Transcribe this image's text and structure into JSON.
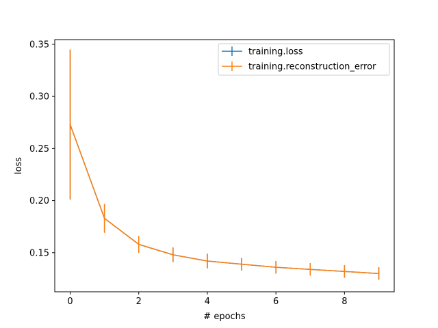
{
  "chart_data": {
    "type": "line",
    "title": "",
    "xlabel": "# epochs",
    "ylabel": "loss",
    "xlim": [
      -0.45,
      9.45
    ],
    "ylim": [
      0.1125,
      0.3545
    ],
    "x_ticks": [
      0,
      2,
      4,
      6,
      8
    ],
    "x_tick_labels": [
      "0",
      "2",
      "4",
      "6",
      "8"
    ],
    "y_ticks": [
      0.15,
      0.2,
      0.25,
      0.3,
      0.35
    ],
    "y_tick_labels": [
      "0.15",
      "0.20",
      "0.25",
      "0.30",
      "0.35"
    ],
    "grid": false,
    "legend_position": "top-right",
    "x": [
      0,
      1,
      2,
      3,
      4,
      5,
      6,
      7,
      8,
      9
    ],
    "series": [
      {
        "name": "training.loss",
        "color": "#1f77b4",
        "values": [
          0.273,
          0.183,
          0.158,
          0.148,
          0.142,
          0.139,
          0.136,
          0.134,
          0.132,
          0.13
        ],
        "errors": [
          0.072,
          0.013,
          0.008,
          0.007,
          0.007,
          0.006,
          0.006,
          0.006,
          0.006,
          0.006
        ]
      },
      {
        "name": "training.reconstruction_error",
        "color": "#ff7f0e",
        "values": [
          0.273,
          0.183,
          0.158,
          0.148,
          0.142,
          0.139,
          0.136,
          0.134,
          0.132,
          0.13
        ],
        "errors": [
          0.072,
          0.014,
          0.008,
          0.007,
          0.007,
          0.006,
          0.006,
          0.006,
          0.006,
          0.006
        ]
      }
    ]
  }
}
